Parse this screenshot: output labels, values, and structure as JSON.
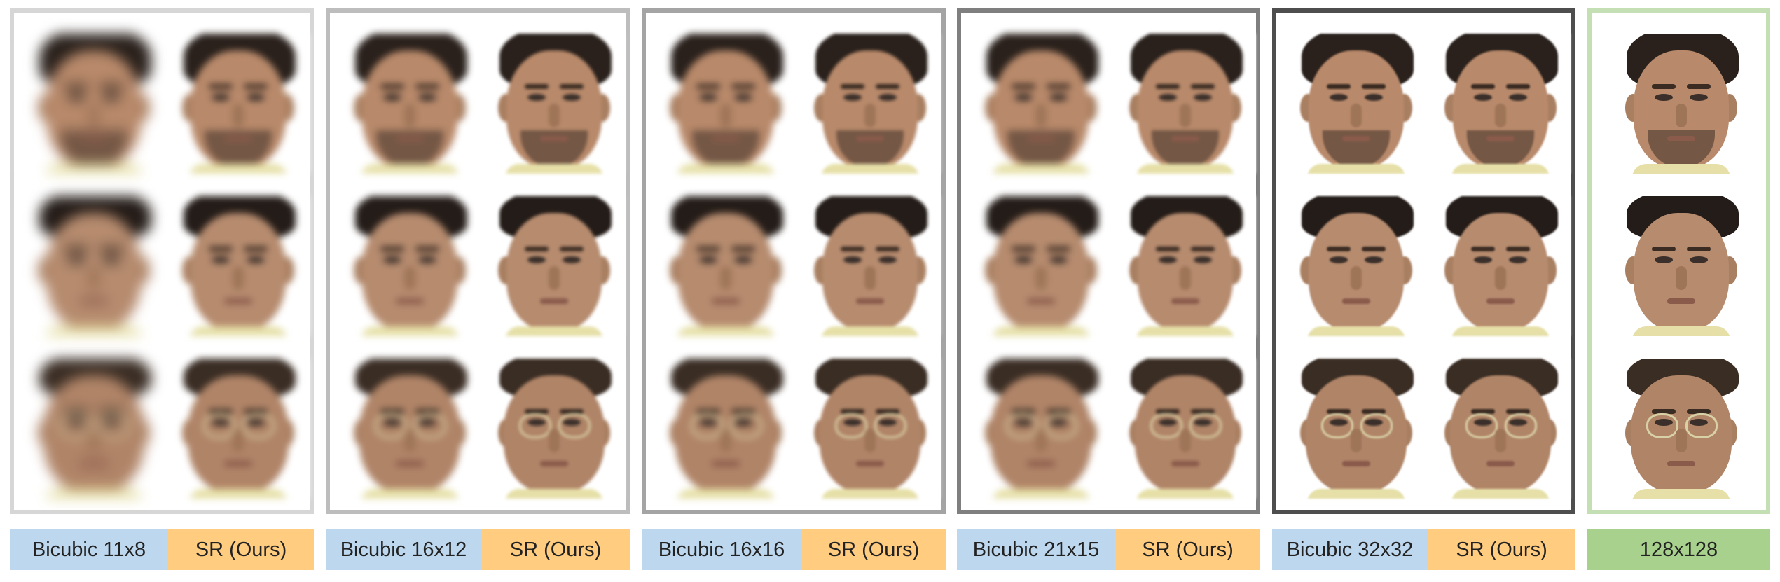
{
  "labels": {
    "group1": {
      "bicubic": "Bicubic 11x8",
      "sr": "SR (Ours)"
    },
    "group2": {
      "bicubic": "Bicubic 16x12",
      "sr": "SR (Ours)"
    },
    "group3": {
      "bicubic": "Bicubic 16x16",
      "sr": "SR (Ours)"
    },
    "group4": {
      "bicubic": "Bicubic 21x15",
      "sr": "SR (Ours)"
    },
    "group5": {
      "bicubic": "Bicubic 32x32",
      "sr": "SR (Ours)"
    },
    "group6": {
      "ground_truth": "128x128"
    }
  },
  "colors": {
    "bicubic_label": "#bdd7ee",
    "sr_label": "#ffcc80",
    "ground_truth_label": "#a9d18e",
    "frame_group1": "#d6d6d6",
    "frame_group2": "#bdbdbd",
    "frame_group3": "#a4a4a4",
    "frame_group4": "#7f7f7f",
    "frame_group5": "#4e4e4e",
    "frame_group6": "#c5dfb4"
  }
}
